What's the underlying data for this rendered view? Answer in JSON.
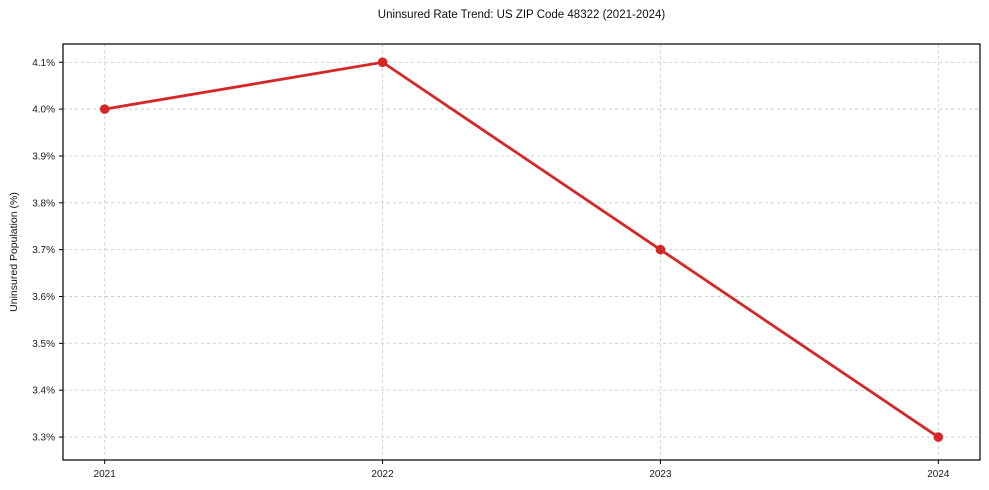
{
  "chart_data": {
    "type": "line",
    "title": "Uninsured Rate Trend: US ZIP Code 48322 (2021-2024)",
    "ylabel": "Uninsured Population (%)",
    "xlabel": "",
    "x": [
      2021,
      2022,
      2023,
      2024
    ],
    "values": [
      4.0,
      4.1,
      3.7,
      3.3
    ],
    "xtick_labels": [
      "2021",
      "2022",
      "2023",
      "2024"
    ],
    "ytick_values": [
      3.3,
      3.4,
      3.5,
      3.6,
      3.7,
      3.8,
      3.9,
      4.0,
      4.1
    ],
    "ytick_labels": [
      "3.3%",
      "3.4%",
      "3.5%",
      "3.6%",
      "3.7%",
      "3.8%",
      "3.9%",
      "4.0%",
      "4.1%"
    ],
    "xlim": [
      2020.85,
      2024.15
    ],
    "ylim": [
      3.251,
      4.139
    ],
    "grid": true,
    "grid_style": "dashed",
    "legend_position": "none",
    "line_color": "#d62728",
    "marker_color": "#d62728",
    "grid_color": "#cccccc",
    "spine_color": "#000000",
    "tick_color": "#000000",
    "text_color": "#1a1a1a"
  }
}
